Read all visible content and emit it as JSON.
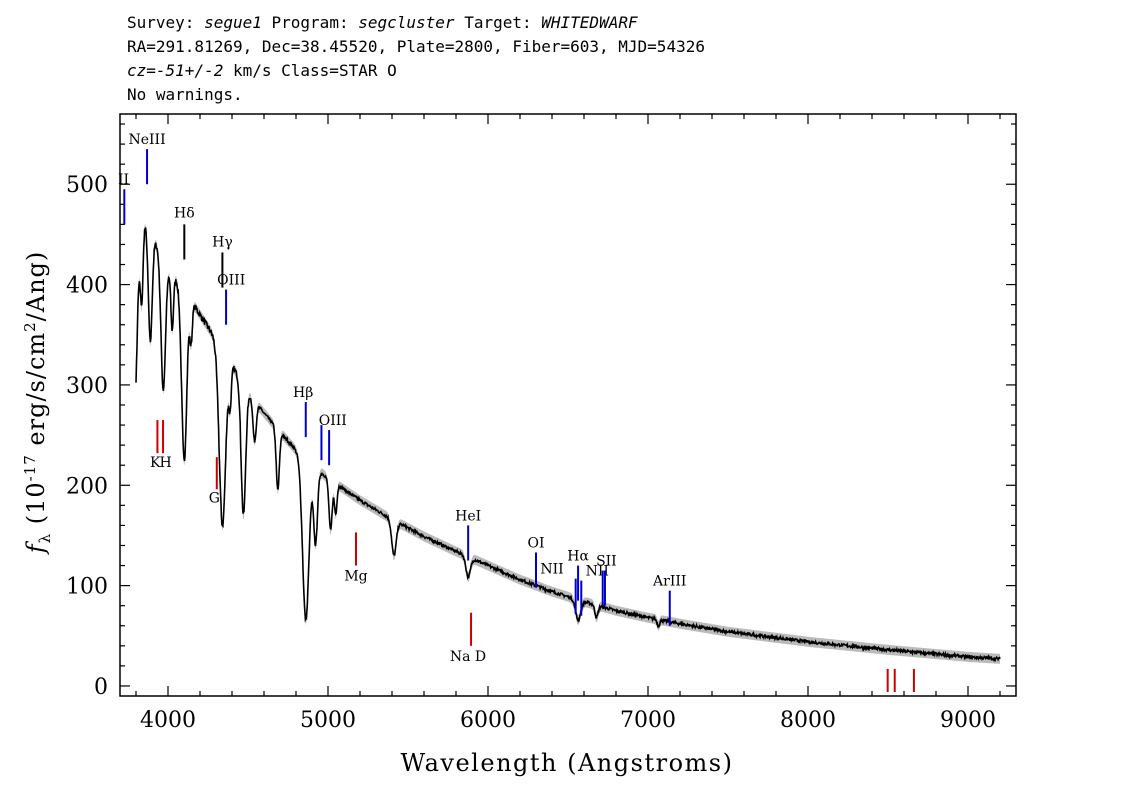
{
  "header": {
    "survey_label": "Survey:",
    "survey": "segue1",
    "program_label": "Program:",
    "program": "segcluster",
    "target_label": "Target:",
    "target": "WHITEDWARF",
    "line2": "RA=291.81269, Dec=38.45520, Plate=2800, Fiber=603, MJD=54326",
    "cz_label": "cz=",
    "cz": "-51+/-2",
    "cz_units_class": " km/s Class=STAR O",
    "warnings": "No warnings."
  },
  "chart_data": {
    "type": "line",
    "xlabel": "Wavelength (Angstroms)",
    "ylabel": "f_λ (10^-17 erg/s/cm^2/Ang)",
    "xlim": [
      3700,
      9300
    ],
    "ylim": [
      -10,
      570
    ],
    "xticks": [
      4000,
      5000,
      6000,
      7000,
      8000,
      9000
    ],
    "yticks": [
      0,
      100,
      200,
      300,
      400,
      500
    ],
    "continuum": [
      [
        3800,
        440
      ],
      [
        3850,
        465
      ],
      [
        3900,
        450
      ],
      [
        4000,
        415
      ],
      [
        4100,
        395
      ],
      [
        4200,
        370
      ],
      [
        4300,
        345
      ],
      [
        4400,
        320
      ],
      [
        4500,
        292
      ],
      [
        4600,
        272
      ],
      [
        4700,
        253
      ],
      [
        4800,
        235
      ],
      [
        4900,
        220
      ],
      [
        5000,
        207
      ],
      [
        5200,
        185
      ],
      [
        5400,
        166
      ],
      [
        5600,
        149
      ],
      [
        5800,
        134
      ],
      [
        6000,
        120
      ],
      [
        6200,
        106
      ],
      [
        6400,
        94
      ],
      [
        6600,
        84
      ],
      [
        6800,
        75
      ],
      [
        7000,
        68
      ],
      [
        7200,
        62
      ],
      [
        7500,
        54
      ],
      [
        8000,
        44
      ],
      [
        8500,
        36
      ],
      [
        9000,
        29
      ],
      [
        9200,
        27
      ]
    ],
    "absorption": [
      [
        3798,
        70,
        10
      ],
      [
        3835,
        80,
        9
      ],
      [
        3889,
        110,
        12
      ],
      [
        3970,
        130,
        14
      ],
      [
        4026,
        55,
        8
      ],
      [
        4101,
        170,
        16
      ],
      [
        4144,
        40,
        8
      ],
      [
        4340,
        175,
        20
      ],
      [
        4388,
        40,
        8
      ],
      [
        4471,
        130,
        14
      ],
      [
        4541,
        40,
        10
      ],
      [
        4686,
        60,
        10
      ],
      [
        4861,
        160,
        20
      ],
      [
        4922,
        75,
        12
      ],
      [
        5016,
        50,
        10
      ],
      [
        5048,
        30,
        8
      ],
      [
        5412,
        35,
        14
      ],
      [
        5876,
        20,
        14
      ],
      [
        6563,
        20,
        16
      ],
      [
        6678,
        12,
        10
      ],
      [
        7065,
        6,
        8
      ]
    ],
    "lines": [
      {
        "label": "NeIII",
        "wave": 3869,
        "color": "#0000cc",
        "y0": 500,
        "y1": 535,
        "lx": 3869,
        "ly": 540
      },
      {
        "label": "II",
        "wave": 3727,
        "color": "#0000cc",
        "y0": 460,
        "y1": 495,
        "lx": 3722,
        "ly": 500
      },
      {
        "label": "Hδ",
        "wave": 4102,
        "color": "#000000",
        "y0": 425,
        "y1": 460,
        "lx": 4102,
        "ly": 467
      },
      {
        "label": "Hγ",
        "wave": 4340,
        "color": "#000000",
        "y0": 397,
        "y1": 432,
        "lx": 4340,
        "ly": 438
      },
      {
        "label": "OIII",
        "wave": 4363,
        "color": "#0000cc",
        "y0": 360,
        "y1": 395,
        "lx": 4395,
        "ly": 400
      },
      {
        "label": "Hβ",
        "wave": 4861,
        "color": "#0000cc",
        "y0": 248,
        "y1": 283,
        "lx": 4845,
        "ly": 288
      },
      {
        "label": "OIII",
        "wave": 4959,
        "color": "#0000cc",
        "y0": 225,
        "y1": 260,
        "lx": 4959,
        "ly": 2000
      },
      {
        "label": "OIII",
        "wave": 5007,
        "color": "#0000cc",
        "y0": 220,
        "y1": 255,
        "lx": 5030,
        "ly": 260
      },
      {
        "label": "HeI",
        "wave": 5876,
        "color": "#0000cc",
        "y0": 125,
        "y1": 160,
        "lx": 5876,
        "ly": 165
      },
      {
        "label": "OI",
        "wave": 6300,
        "color": "#0000cc",
        "y0": 98,
        "y1": 133,
        "lx": 6300,
        "ly": 138
      },
      {
        "label": "NII",
        "wave": 6548,
        "color": "#0000cc",
        "y0": 72,
        "y1": 107,
        "lx": 6400,
        "ly": 112
      },
      {
        "label": "Hα",
        "wave": 6563,
        "color": "#0000cc",
        "y0": 85,
        "y1": 120,
        "lx": 6563,
        "ly": 125
      },
      {
        "label": "NII",
        "wave": 6583,
        "color": "#0000cc",
        "y0": 70,
        "y1": 105,
        "lx": 6683,
        "ly": 110
      },
      {
        "label": "SII",
        "wave": 6717,
        "color": "#0000cc",
        "y0": 80,
        "y1": 115,
        "lx": 6740,
        "ly": 120
      },
      {
        "label": "SII",
        "wave": 6731,
        "color": "#0000cc",
        "y0": 80,
        "y1": 115,
        "lx": 6731,
        "ly": 2000
      },
      {
        "label": "ArIII",
        "wave": 7136,
        "color": "#0000cc",
        "y0": 60,
        "y1": 95,
        "lx": 7136,
        "ly": 100
      },
      {
        "label": "K",
        "wave": 3934,
        "color": "#cc0000",
        "y0": 232,
        "y1": 265,
        "lx": 3920,
        "ly": 218
      },
      {
        "label": "H",
        "wave": 3969,
        "color": "#cc0000",
        "y0": 232,
        "y1": 265,
        "lx": 3985,
        "ly": 218
      },
      {
        "label": "G",
        "wave": 4305,
        "color": "#cc0000",
        "y0": 196,
        "y1": 228,
        "lx": 4290,
        "ly": 183
      },
      {
        "label": "Mg",
        "wave": 5175,
        "color": "#cc0000",
        "y0": 120,
        "y1": 153,
        "lx": 5175,
        "ly": 105
      },
      {
        "label": "Na  D",
        "wave": 5894,
        "color": "#cc0000",
        "y0": 40,
        "y1": 73,
        "lx": 5875,
        "ly": 25
      },
      {
        "label": "",
        "wave": 8498,
        "color": "#cc0000",
        "y0": -6,
        "y1": 17,
        "lx": 8498,
        "ly": 2000
      },
      {
        "label": "",
        "wave": 8542,
        "color": "#cc0000",
        "y0": -6,
        "y1": 17,
        "lx": 8542,
        "ly": 2000
      },
      {
        "label": "",
        "wave": 8662,
        "color": "#cc0000",
        "y0": -6,
        "y1": 17,
        "lx": 8662,
        "ly": 2000
      }
    ]
  }
}
